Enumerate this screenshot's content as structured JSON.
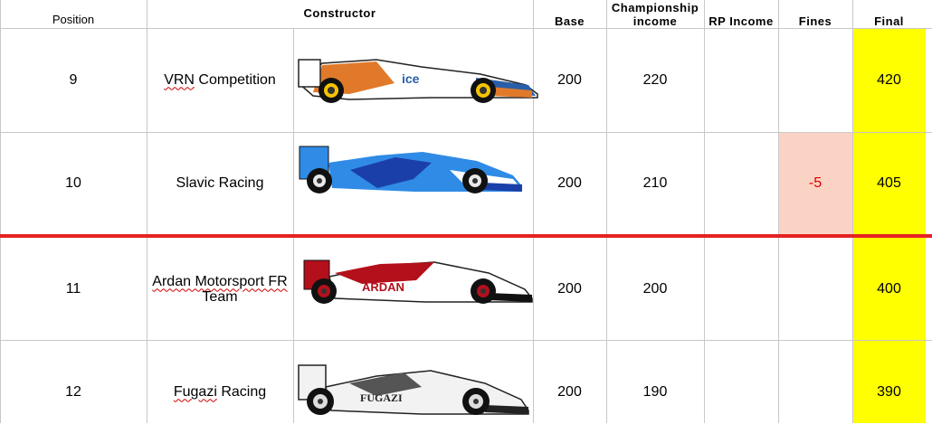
{
  "headers": {
    "position": "Position",
    "constructor": "Constructor",
    "base": "Base",
    "championship_line1": "Championship",
    "championship_line2": "income",
    "rp_income": "RP Income",
    "fines": "Fines",
    "final": "Final"
  },
  "rows": [
    {
      "position": "9",
      "team_part1": "VRN",
      "team_part2": " Competition",
      "base": "200",
      "championship": "220",
      "rp": "",
      "fines": "",
      "final": "420",
      "car_colors": {
        "body": "#ffffff",
        "accent": "#e07a2a",
        "nose": "#2a5fa8"
      }
    },
    {
      "position": "10",
      "team_part1": "Slavic Racing",
      "team_part2": "",
      "base": "200",
      "championship": "210",
      "rp": "",
      "fines": "-5",
      "final": "405",
      "car_colors": {
        "body": "#2f8be6",
        "accent": "#1b3fa8",
        "nose": "#1b3fa8"
      }
    },
    {
      "position": "11",
      "team_part1": "Ardan Motorsport FR",
      "team_part2": "Team",
      "base": "200",
      "championship": "200",
      "rp": "",
      "fines": "",
      "final": "400",
      "car_colors": {
        "body": "#ffffff",
        "accent": "#b3101c",
        "nose": "#111111"
      }
    },
    {
      "position": "12",
      "team_part1": "Fugazi",
      "team_part2": " Racing",
      "base": "200",
      "championship": "190",
      "rp": "",
      "fines": "",
      "final": "390",
      "car_colors": {
        "body": "#f2f2f2",
        "accent": "#555555",
        "nose": "#222222"
      }
    }
  ],
  "colors": {
    "final_highlight": "#ffff00",
    "fine_highlight": "#fbd3c4",
    "fine_text": "#e00000",
    "separator": "#e52222"
  }
}
